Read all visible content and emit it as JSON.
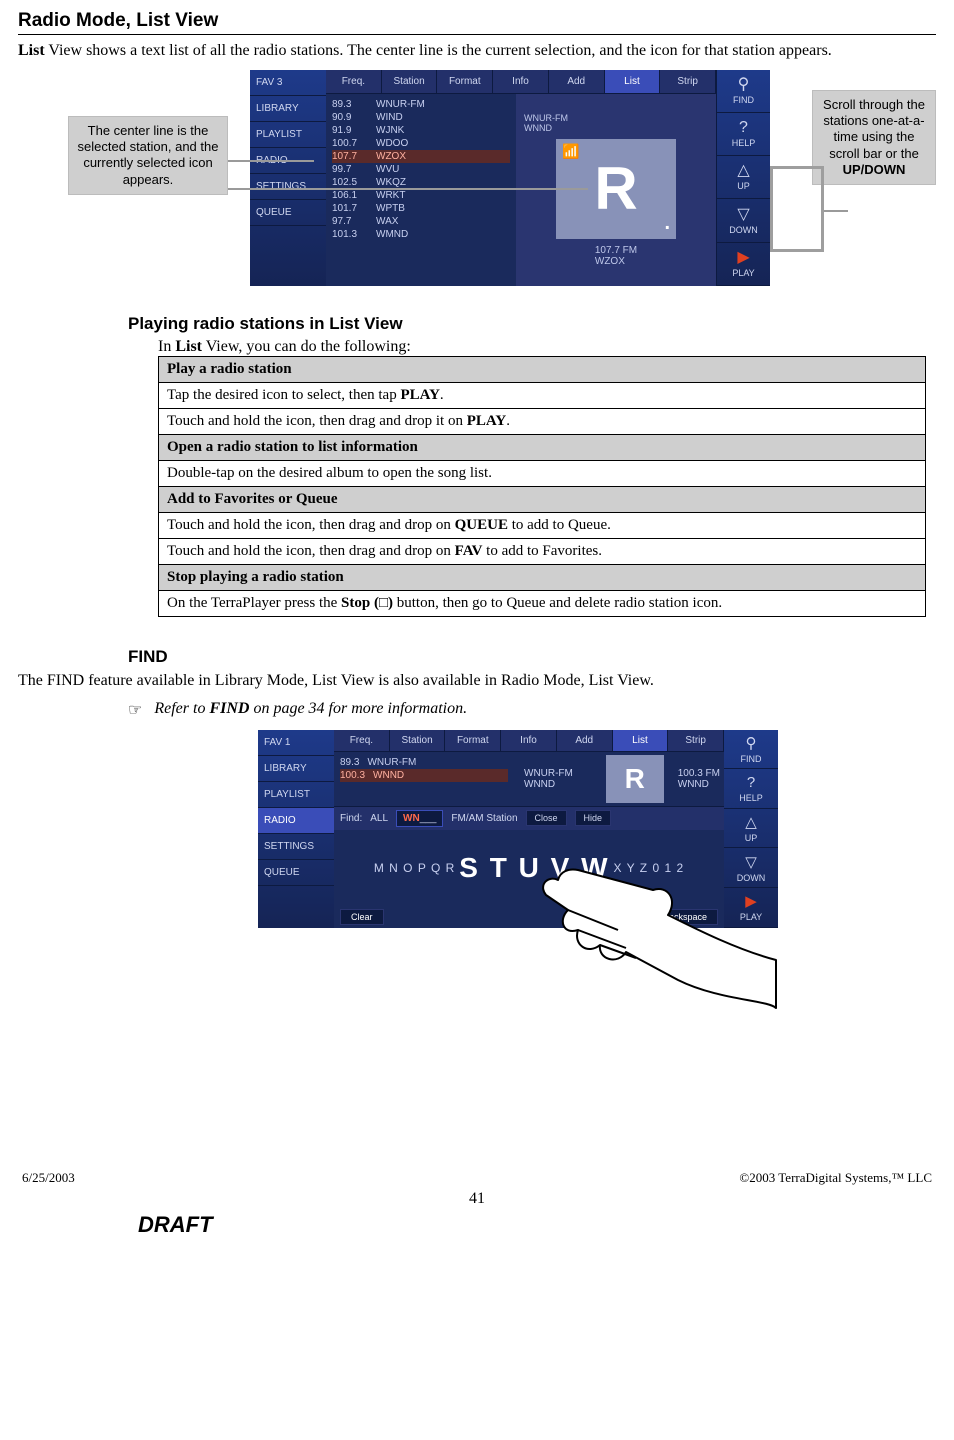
{
  "page": {
    "title": "Radio Mode, List View",
    "intro_prefix": "List",
    "intro_rest": " View shows a text list of all the radio stations.  The center line is the current selection, and the icon for that station appears.",
    "section_playing": "Playing radio stations in List View",
    "playing_intro_a": "In ",
    "playing_intro_b": "List",
    "playing_intro_c": " View, you can do the following:",
    "section_find": "FIND",
    "find_para": "The FIND feature available in Library Mode, List View is also available in Radio Mode, List View.",
    "ref_symbol": "☞",
    "ref_a": "Refer to ",
    "ref_b": "FIND",
    "ref_c": " on page 34 for more information."
  },
  "callouts": {
    "left": "The center line is the selected station, and the currently selected icon appears.",
    "right_a": "Scroll through the stations one-at-a-time using the scroll bar or the ",
    "right_b": "UP/DOWN"
  },
  "ui1": {
    "leftnav": [
      "FAV 3",
      "LIBRARY",
      "PLAYLIST",
      "RADIO",
      "SETTINGS",
      "QUEUE"
    ],
    "tabs": [
      "Freq.",
      "Station",
      "Format",
      "Info",
      "Add",
      "List",
      "Strip"
    ],
    "active_tab_index": 5,
    "list": [
      {
        "freq": "89.3",
        "call": "WNUR-FM"
      },
      {
        "freq": "90.9",
        "call": "WIND"
      },
      {
        "freq": "91.9",
        "call": "WJNK"
      },
      {
        "freq": "100.7",
        "call": "WDOO"
      },
      {
        "freq": "107.7",
        "call": "WZOX"
      },
      {
        "freq": "99.7",
        "call": "WVU"
      },
      {
        "freq": "102.5",
        "call": "WKQZ"
      },
      {
        "freq": "106.1",
        "call": "WRKT"
      },
      {
        "freq": "101.7",
        "call": "WPTB"
      },
      {
        "freq": "97.7",
        "call": "WAX"
      },
      {
        "freq": "101.3",
        "call": "WMND"
      }
    ],
    "selected_index": 4,
    "preview_names": [
      "WNUR-FM",
      "WNND"
    ],
    "now_freq": "107.7 FM",
    "now_call": "WZOX",
    "right": [
      {
        "icon": "⚲",
        "label": "FIND"
      },
      {
        "icon": "?",
        "label": "HELP"
      },
      {
        "icon": "△",
        "label": "UP"
      },
      {
        "icon": "▽",
        "label": "DOWN"
      },
      {
        "icon": "▶",
        "label": "PLAY"
      }
    ]
  },
  "table": {
    "h1": "Play a radio station",
    "r1a": "Tap the desired icon to select, then tap ",
    "r1b": "PLAY",
    "r1c": ".",
    "r2a": "Touch and hold the icon, then drag and drop it on ",
    "r2b": "PLAY",
    "r2c": ".",
    "h2": "Open a radio station to list information",
    "r3": "Double-tap on the desired album to open the song list.",
    "h3": "Add to Favorites or Queue",
    "r4a": "Touch and hold the icon, then drag and drop on ",
    "r4b": "QUEUE",
    "r4c": " to add to Queue.",
    "r5a": "Touch and hold the icon, then drag and drop on ",
    "r5b": "FAV",
    "r5c": " to add to Favorites.",
    "h4": "Stop playing a radio station",
    "r6a": "On the TerraPlayer press the ",
    "r6b": "Stop (□)",
    "r6c": " button, then go to Queue and delete radio station icon."
  },
  "ui2": {
    "leftnav": [
      "FAV 1",
      "LIBRARY",
      "PLAYLIST",
      "RADIO",
      "SETTINGS",
      "QUEUE"
    ],
    "selected_nav_index": 3,
    "tabs": [
      "Freq.",
      "Station",
      "Format",
      "Info",
      "Add",
      "List",
      "Strip"
    ],
    "active_tab_index": 5,
    "list": [
      {
        "freq": "89.3",
        "call": "WNUR-FM"
      },
      {
        "freq": "100.3",
        "call": "WNND"
      }
    ],
    "selected_index": 1,
    "preview_names": [
      "WNUR-FM",
      "WNND"
    ],
    "now_freq": "100.3 FM",
    "now_call": "WNND",
    "find_label": "Find:",
    "find_scope": "ALL",
    "find_text": "WN",
    "find_target": "FM/AM Station",
    "find_close": "Close",
    "find_hide": "Hide",
    "alpha_left": "M N O P Q R",
    "alpha_mid": "S T U V W",
    "alpha_right": "X Y Z 0 1 2",
    "clear": "Clear",
    "backspace": "Backspace",
    "right": [
      {
        "icon": "⚲",
        "label": "FIND"
      },
      {
        "icon": "?",
        "label": "HELP"
      },
      {
        "icon": "△",
        "label": "UP"
      },
      {
        "icon": "▽",
        "label": "DOWN"
      },
      {
        "icon": "▶",
        "label": "PLAY"
      }
    ]
  },
  "footer": {
    "date": "6/25/2003",
    "copyright": "©2003 TerraDigital Systems,™ LLC",
    "pagenum": "41",
    "draft": "DRAFT"
  },
  "colors": {
    "ui_bg": "#1a2a5c",
    "callout_bg": "#cfcfcf",
    "sel_row": "#5a2a2a"
  }
}
